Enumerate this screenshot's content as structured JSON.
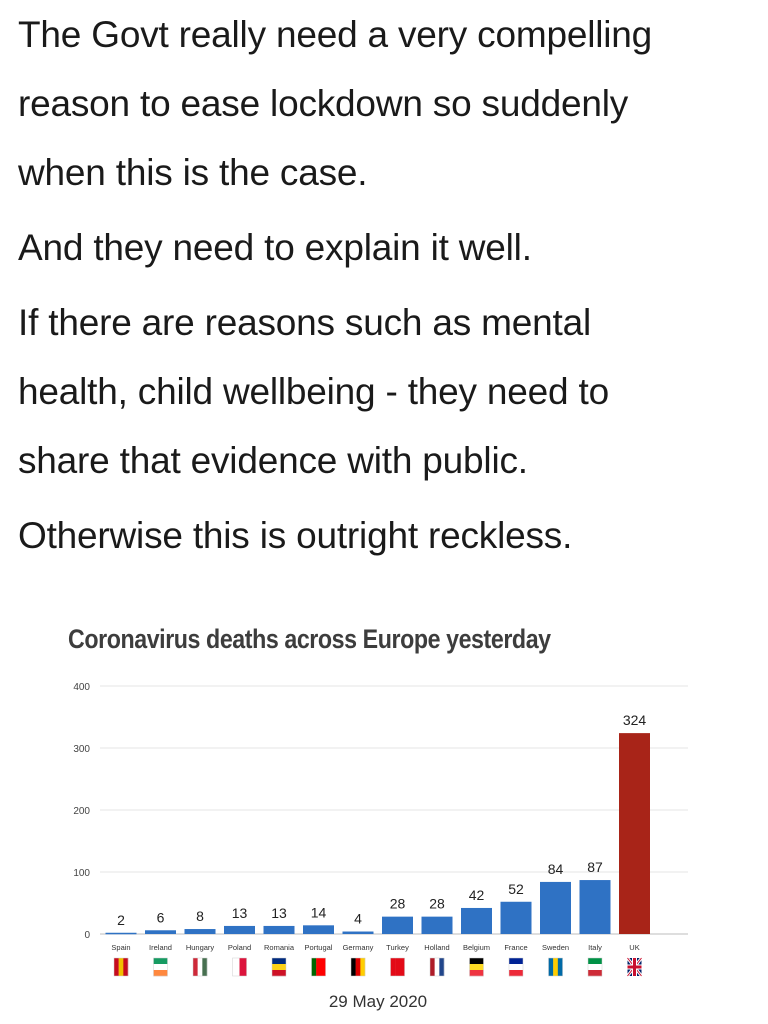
{
  "tweet": {
    "line1": "The Govt really need a very compelling",
    "line2": "reason to ease lockdown so suddenly",
    "line3": "when this is the case.",
    "line4": "And they need to explain it well.",
    "line5": "If there are reasons such as mental",
    "line6": "health, child wellbeing - they need to",
    "line7": "share that evidence with public.",
    "line8": "Otherwise this is outright reckless."
  },
  "chart_data": {
    "type": "bar",
    "title": "Coronavirus deaths across Europe yesterday",
    "xlabel": "29 May 2020",
    "ylabel": "",
    "ylim": [
      0,
      400
    ],
    "yticks": [
      0,
      100,
      200,
      300,
      400
    ],
    "grid": true,
    "categories": [
      "Spain",
      "Ireland",
      "Hungary",
      "Poland",
      "Romania",
      "Portugal",
      "Germany",
      "Turkey",
      "Holland",
      "Belgium",
      "France",
      "Sweden",
      "Italy",
      "UK"
    ],
    "values": [
      2,
      6,
      8,
      13,
      13,
      14,
      4,
      28,
      28,
      42,
      52,
      84,
      87,
      324
    ],
    "bar_colors": [
      "#2f72c4",
      "#2f72c4",
      "#2f72c4",
      "#2f72c4",
      "#2f72c4",
      "#2f72c4",
      "#2f72c4",
      "#2f72c4",
      "#2f72c4",
      "#2f72c4",
      "#2f72c4",
      "#2f72c4",
      "#2f72c4",
      "#a82418"
    ],
    "flags": [
      {
        "country": "Spain",
        "colors": [
          "#c60b1e",
          "#f1bf00",
          "#c60b1e"
        ],
        "orientation": "vertical"
      },
      {
        "country": "Ireland",
        "colors": [
          "#169b62",
          "#ffffff",
          "#ff883e"
        ],
        "orientation": "horizontal"
      },
      {
        "country": "Hungary",
        "colors": [
          "#ce2939",
          "#ffffff",
          "#477050"
        ],
        "orientation": "vertical"
      },
      {
        "country": "Poland",
        "colors": [
          "#ffffff",
          "#dc143c"
        ],
        "orientation": "vertical"
      },
      {
        "country": "Romania",
        "colors": [
          "#002b7f",
          "#fcd116",
          "#ce1126"
        ],
        "orientation": "horizontal"
      },
      {
        "country": "Portugal",
        "colors": [
          "#006600",
          "#ff0000",
          "#ff0000"
        ],
        "orientation": "vertical"
      },
      {
        "country": "Germany",
        "colors": [
          "#000000",
          "#dd0000",
          "#ffce00"
        ],
        "orientation": "vertical"
      },
      {
        "country": "Turkey",
        "colors": [
          "#e30a17",
          "#e30a17",
          "#e30a17"
        ],
        "orientation": "vertical"
      },
      {
        "country": "Holland",
        "colors": [
          "#ae1c28",
          "#ffffff",
          "#21468b"
        ],
        "orientation": "vertical"
      },
      {
        "country": "Belgium",
        "colors": [
          "#000000",
          "#fdda24",
          "#ef3340"
        ],
        "orientation": "horizontal"
      },
      {
        "country": "France",
        "colors": [
          "#002395",
          "#ffffff",
          "#ed2939"
        ],
        "orientation": "horizontal"
      },
      {
        "country": "Sweden",
        "colors": [
          "#006aa7",
          "#fecc00",
          "#006aa7"
        ],
        "orientation": "vertical"
      },
      {
        "country": "Italy",
        "colors": [
          "#009246",
          "#ffffff",
          "#ce2b37"
        ],
        "orientation": "horizontal"
      },
      {
        "country": "UK",
        "colors": [
          "#012169",
          "#ffffff",
          "#c8102e"
        ],
        "orientation": "union"
      }
    ]
  }
}
